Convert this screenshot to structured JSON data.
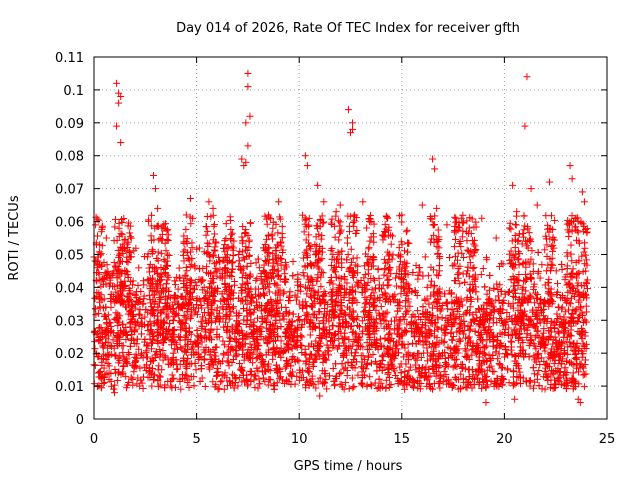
{
  "chart_data": {
    "type": "scatter",
    "title": "Day 014 of 2026, Rate Of TEC Index for receiver gfth",
    "xlabel": "GPS time / hours",
    "ylabel": "ROTI / TECUs",
    "xlim": [
      0,
      25
    ],
    "ylim": [
      0,
      0.11
    ],
    "xticks": [
      0,
      5,
      10,
      15,
      20,
      25
    ],
    "xtick_labels": [
      "0",
      "5",
      "10",
      "15",
      "20",
      "25"
    ],
    "yticks": [
      0,
      0.01,
      0.02,
      0.03,
      0.04,
      0.05,
      0.06,
      0.07,
      0.08,
      0.09,
      0.1,
      0.11
    ],
    "ytick_labels": [
      "0",
      "0.01",
      "0.02",
      "0.03",
      "0.04",
      "0.05",
      "0.06",
      "0.07",
      "0.08",
      "0.09",
      "0.1",
      "0.11"
    ],
    "grid": true,
    "marker": "+",
    "series": [
      {
        "name": "ROTI",
        "color": "#ff0000",
        "description_points": "dense band of points between roughly 0.01 and 0.05 TECU across 0-24 h",
        "x": [
          0.2,
          0.6,
          1.1,
          1.2,
          1.3,
          1.2,
          1.1,
          1.3,
          2.9,
          3.0,
          3.1,
          3.3,
          4.5,
          4.7,
          5.6,
          5.8,
          7.2,
          7.4,
          7.5,
          7.5,
          7.6,
          7.4,
          7.5,
          7.3,
          8.5,
          9.0,
          10.3,
          10.4,
          10.9,
          11.2,
          11.8,
          12.0,
          12.4,
          12.6,
          12.6,
          12.5,
          12.7,
          13.1,
          13.5,
          14.3,
          15.0,
          16.0,
          16.5,
          16.6,
          16.7,
          17.2,
          17.9,
          18.9,
          19.6,
          20.4,
          20.6,
          21.1,
          21.0,
          21.3,
          21.6,
          22.2,
          23.2,
          23.3,
          23.8,
          23.9
        ],
        "y": [
          0.05,
          0.055,
          0.102,
          0.099,
          0.098,
          0.096,
          0.089,
          0.084,
          0.074,
          0.07,
          0.064,
          0.058,
          0.062,
          0.067,
          0.066,
          0.064,
          0.079,
          0.078,
          0.105,
          0.101,
          0.092,
          0.09,
          0.083,
          0.077,
          0.062,
          0.066,
          0.08,
          0.077,
          0.071,
          0.066,
          0.063,
          0.065,
          0.094,
          0.09,
          0.088,
          0.087,
          0.062,
          0.066,
          0.06,
          0.061,
          0.062,
          0.065,
          0.079,
          0.076,
          0.064,
          0.059,
          0.061,
          0.061,
          0.055,
          0.071,
          0.063,
          0.104,
          0.089,
          0.07,
          0.065,
          0.072,
          0.077,
          0.073,
          0.069,
          0.066
        ],
        "low_outliers_x": [
          1.0,
          11.0,
          19.1,
          20.5,
          23.6,
          23.7
        ],
        "low_outliers_y": [
          0.008,
          0.007,
          0.005,
          0.006,
          0.006,
          0.005
        ]
      }
    ]
  }
}
